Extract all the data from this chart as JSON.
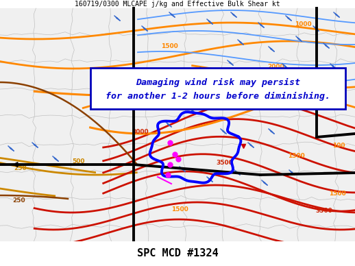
{
  "title_top": "160719/0300 MLCAPE j/kg and Effective Bulk Shear kt",
  "title_bottom": "SPC MCD #1324",
  "annotation_line1": "Damaging wind risk may persist",
  "annotation_line2": "for another 1-2 hours before diminishing.",
  "annotation_box_color": "#0000BB",
  "annotation_text_color": "#0000CC",
  "annotation_bg": "#FFFFFF",
  "fig_width": 5.18,
  "fig_height": 3.88,
  "dpi": 100,
  "bg_color": "#FFFFFF"
}
